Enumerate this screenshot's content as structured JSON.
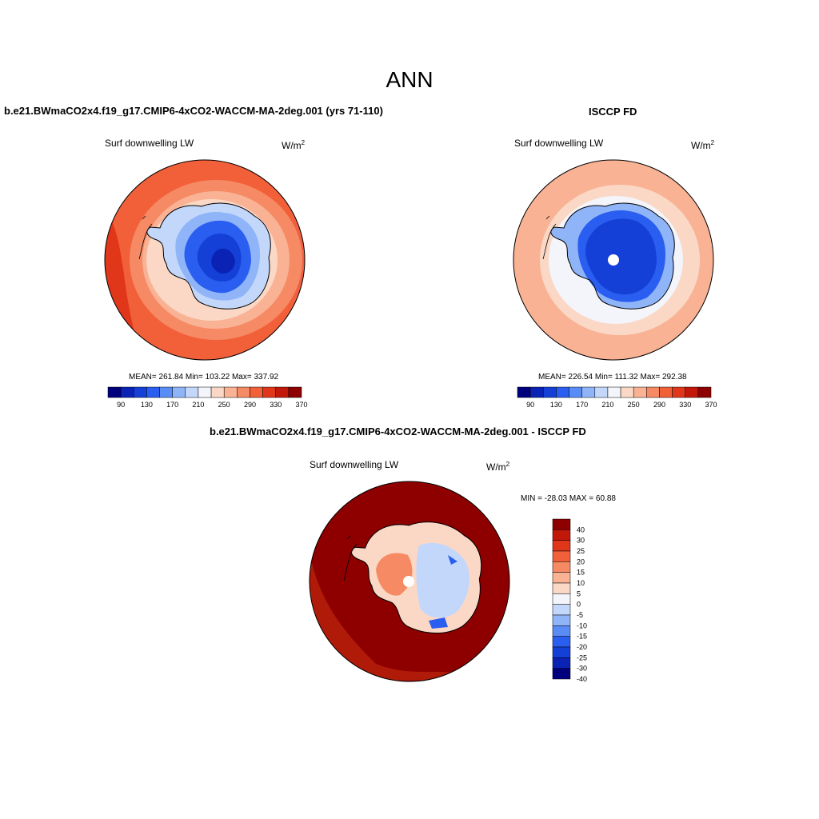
{
  "figure": {
    "title": "ANN"
  },
  "panels": [
    {
      "title": "b.e21.BWmaCO2x4.f19_g17.CMIP6-4xCO2-WACCM-MA-2deg.001 (yrs 71-110)",
      "field": "Surf downwelling LW",
      "units": "W/m",
      "units_exp": "2",
      "stats": "MEAN= 261.84  Min= 103.22  Max= 337.92",
      "colorbar_ticks": [
        "90",
        "130",
        "170",
        "210",
        "250",
        "290",
        "330",
        "370"
      ]
    },
    {
      "title": "ISCCP FD",
      "field": "Surf downwelling LW",
      "units": "W/m",
      "units_exp": "2",
      "stats": "MEAN= 226.54  Min= 111.32  Max= 292.38",
      "colorbar_ticks": [
        "90",
        "130",
        "170",
        "210",
        "250",
        "290",
        "330",
        "370"
      ]
    },
    {
      "title": "b.e21.BWmaCO2x4.f19_g17.CMIP6-4xCO2-WACCM-MA-2deg.001 - ISCCP FD",
      "field": "Surf downwelling LW",
      "units": "W/m",
      "units_exp": "2",
      "stats": "MIN = -28.03 MAX =  60.88",
      "colorbar_ticks": [
        "40",
        "30",
        "25",
        "20",
        "15",
        "10",
        "5",
        "0",
        "-5",
        "-10",
        "-15",
        "-20",
        "-25",
        "-30",
        "-40"
      ]
    }
  ],
  "colors": {
    "abs_scale": [
      "#00007f",
      "#0a23b4",
      "#1440d8",
      "#2a5ef0",
      "#5a8cf5",
      "#90b4f8",
      "#c3d7fb",
      "#f3f5fb",
      "#fbd8c6",
      "#f9b294",
      "#f68a64",
      "#f2603a",
      "#e0361a",
      "#c2180a",
      "#8e0000"
    ],
    "diff_scale": [
      "#8e0000",
      "#c2180a",
      "#e0361a",
      "#f2603a",
      "#f68a64",
      "#f9b294",
      "#fbd8c6",
      "#f3f5fb",
      "#c3d7fb",
      "#90b4f8",
      "#5a8cf5",
      "#2a5ef0",
      "#1440d8",
      "#0a23b4",
      "#00007f"
    ]
  }
}
